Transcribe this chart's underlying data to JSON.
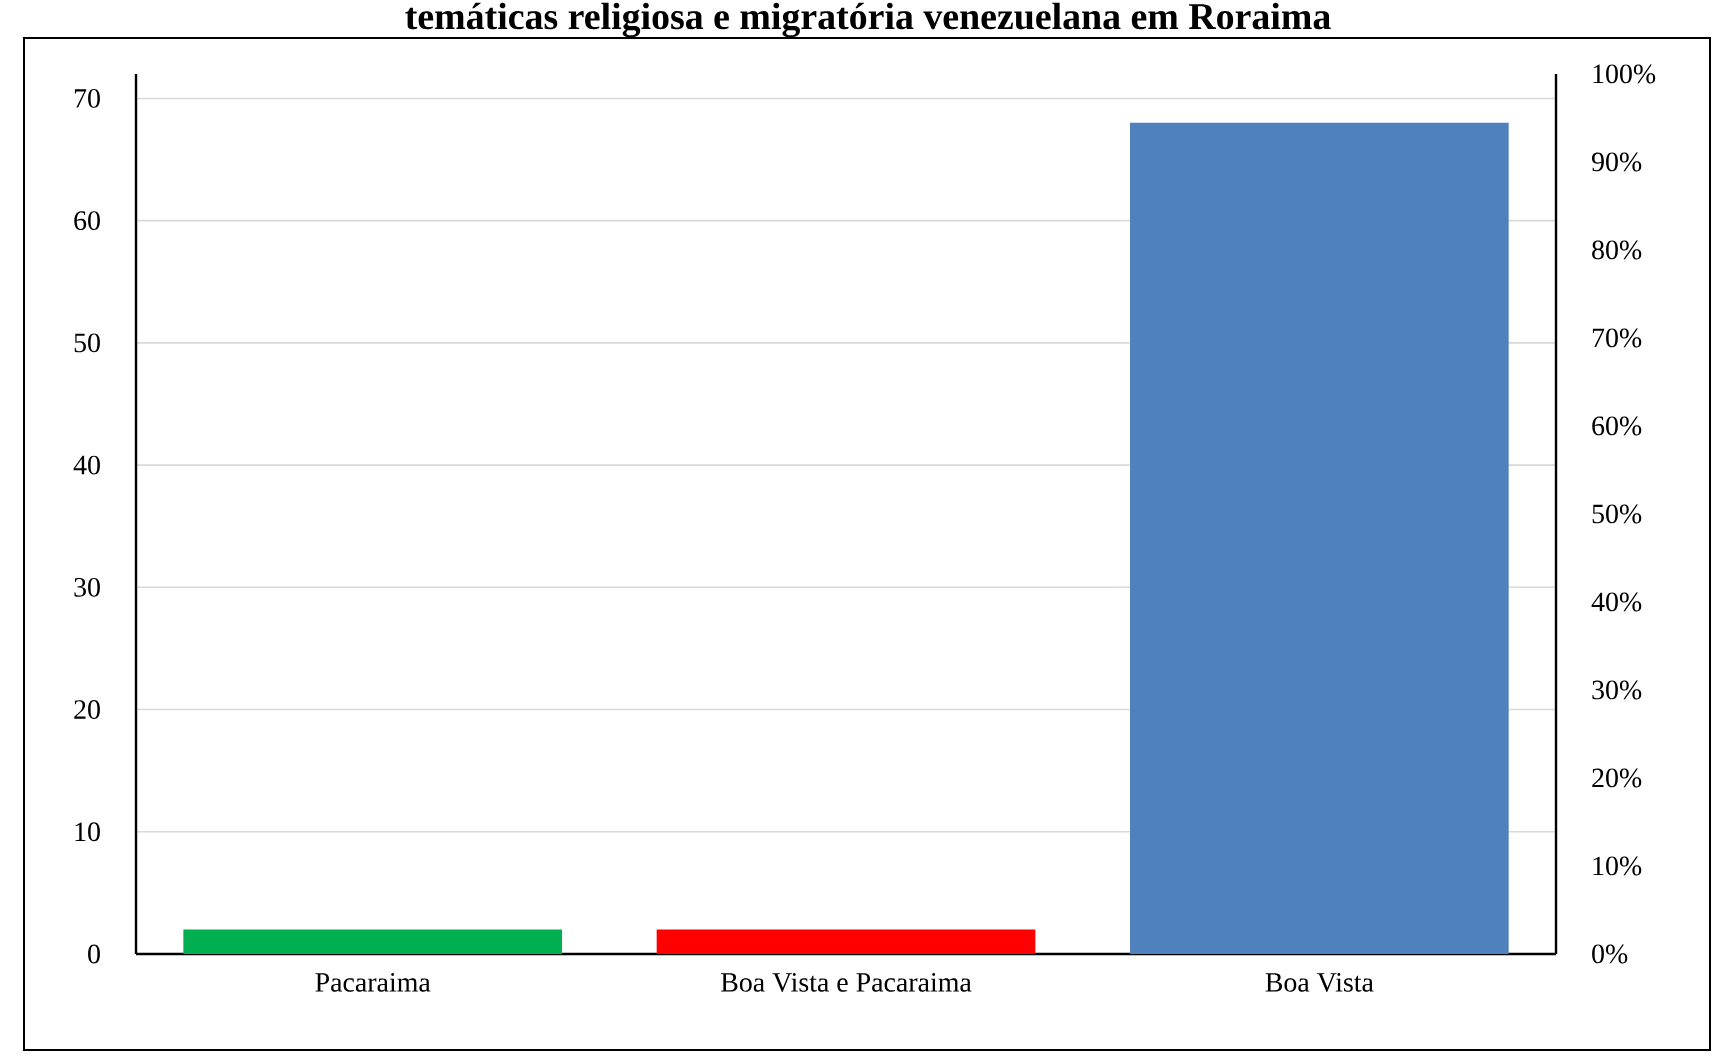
{
  "chart_data": {
    "type": "bar",
    "title": "temáticas religiosa e migratória venezuelana em Roraima",
    "categories": [
      "Pacaraima",
      "Boa Vista e Pacaraima",
      "Boa Vista"
    ],
    "values": [
      2,
      2,
      68
    ],
    "colors": [
      "#00b050",
      "#ff0000",
      "#4f81bd"
    ],
    "ylim": [
      0,
      72
    ],
    "yticks": [
      0,
      10,
      20,
      30,
      40,
      50,
      60,
      70
    ],
    "y2lim": [
      0,
      100
    ],
    "y2ticks": [
      {
        "value": 0,
        "label": "0%"
      },
      {
        "value": 10,
        "label": "10%"
      },
      {
        "value": 20,
        "label": "20%"
      },
      {
        "value": 30,
        "label": "30%"
      },
      {
        "value": 40,
        "label": "40%"
      },
      {
        "value": 50,
        "label": "50%"
      },
      {
        "value": 60,
        "label": "60%"
      },
      {
        "value": 70,
        "label": "70%"
      },
      {
        "value": 80,
        "label": "80%"
      },
      {
        "value": 90,
        "label": "90%"
      },
      {
        "value": 100,
        "label": "100%"
      }
    ],
    "grid": "y"
  }
}
